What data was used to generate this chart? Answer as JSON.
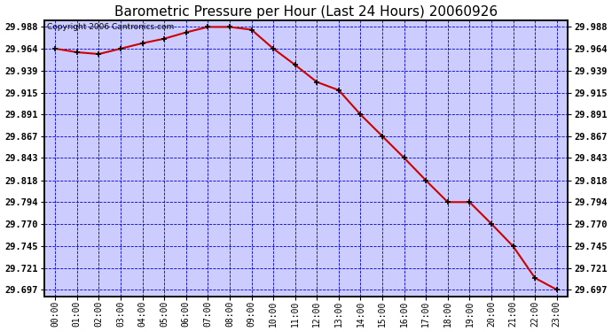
{
  "title": "Barometric Pressure per Hour (Last 24 Hours) 20060926",
  "copyright_text": "Copyright 2006 Cantronics.com",
  "x_labels": [
    "00:00",
    "01:00",
    "02:00",
    "03:00",
    "04:00",
    "05:00",
    "06:00",
    "07:00",
    "08:00",
    "09:00",
    "10:00",
    "11:00",
    "12:00",
    "13:00",
    "14:00",
    "15:00",
    "16:00",
    "17:00",
    "18:00",
    "19:00",
    "20:00",
    "21:00",
    "22:00",
    "23:00"
  ],
  "y_values": [
    29.964,
    29.96,
    29.958,
    29.964,
    29.97,
    29.975,
    29.982,
    29.988,
    29.988,
    29.985,
    29.964,
    29.946,
    29.927,
    29.918,
    29.891,
    29.867,
    29.843,
    29.818,
    29.794,
    29.794,
    29.77,
    29.745,
    29.71,
    29.697
  ],
  "y_ticks": [
    29.988,
    29.964,
    29.939,
    29.915,
    29.891,
    29.867,
    29.843,
    29.818,
    29.794,
    29.77,
    29.745,
    29.721,
    29.697
  ],
  "line_color": "#cc0000",
  "plot_bg_color": "#ccccff",
  "grid_color": "#0000cc",
  "title_fontsize": 11,
  "copyright_fontsize": 6.5,
  "tick_fontsize": 7,
  "ytick_fontsize": 7.5
}
